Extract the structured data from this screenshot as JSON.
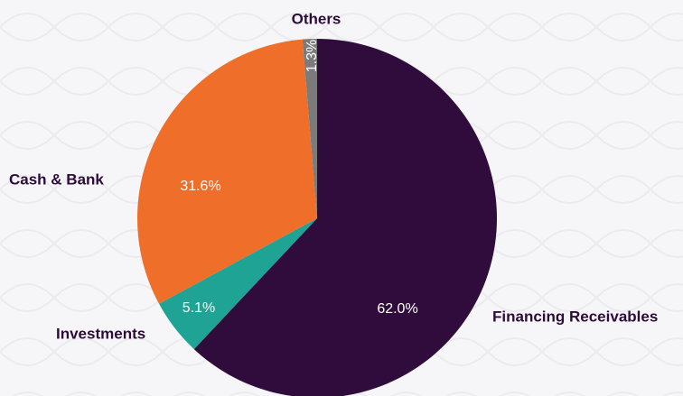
{
  "chart_data": {
    "type": "pie",
    "categories": [
      "Financing Receivables",
      "Investments",
      "Cash & Bank",
      "Others"
    ],
    "values": [
      62.0,
      5.1,
      31.6,
      1.3
    ],
    "value_labels": [
      "62.0%",
      "5.1%",
      "31.6%",
      "1.3%"
    ],
    "colors": [
      "#300c3c",
      "#1fa394",
      "#ef6f2a",
      "#7b7b7b"
    ]
  }
}
